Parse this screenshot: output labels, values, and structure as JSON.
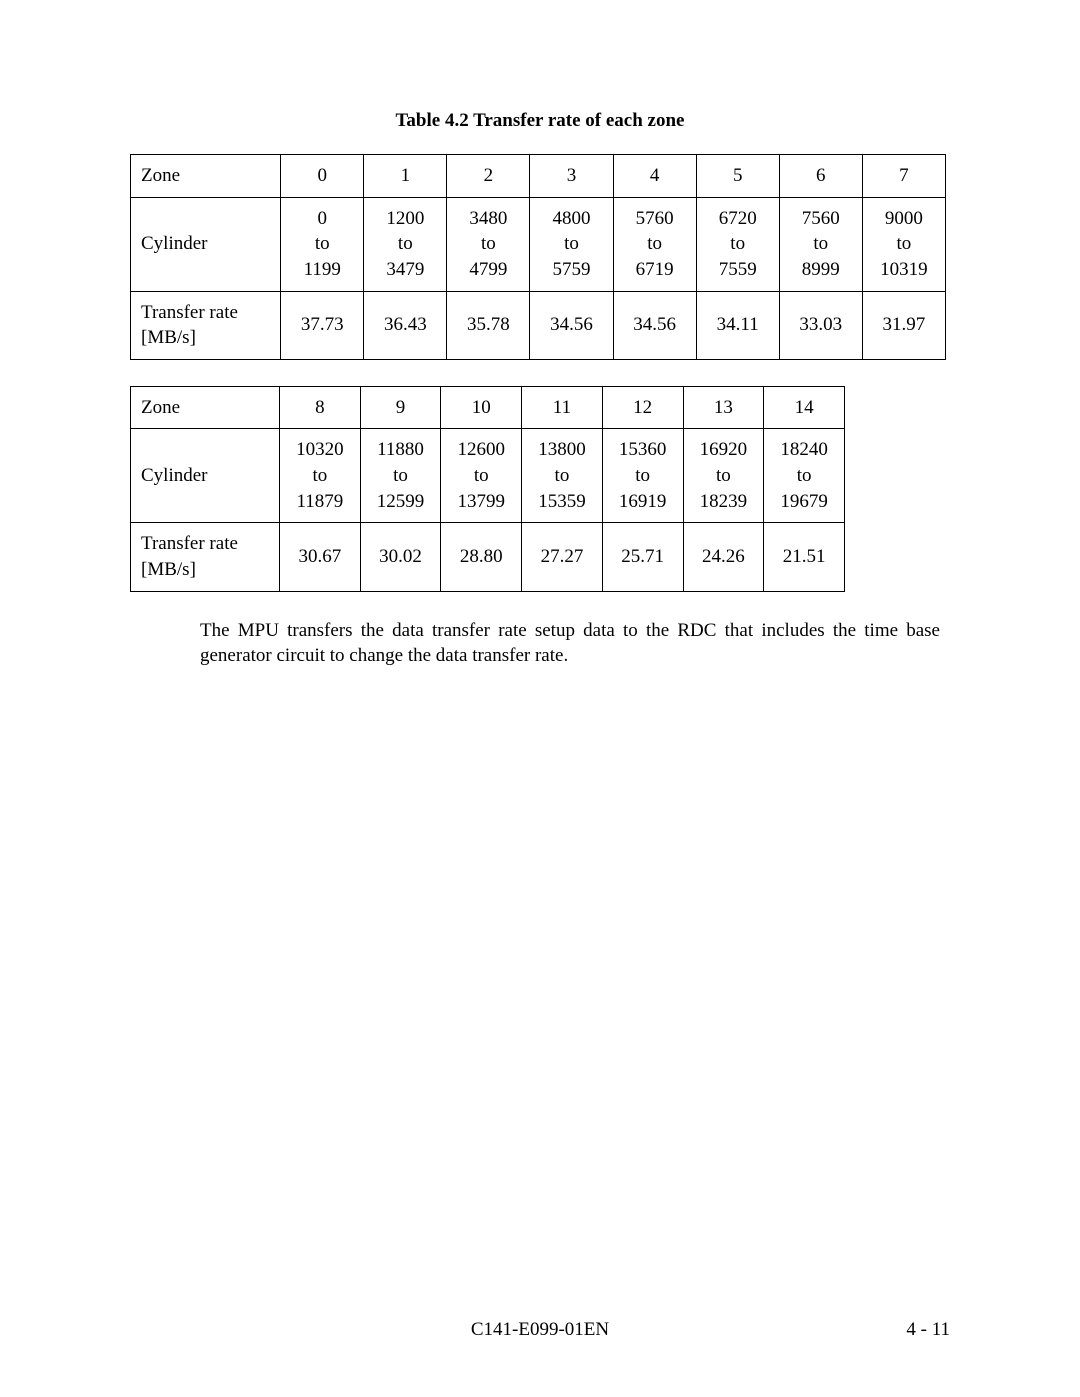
{
  "caption": "Table 4.2    Transfer rate of each zone",
  "labels": {
    "zone": "Zone",
    "cylinder": "Cylinder",
    "transfer": "Transfer rate [MB/s]"
  },
  "table1": {
    "zones": [
      "0",
      "1",
      "2",
      "3",
      "4",
      "5",
      "6",
      "7"
    ],
    "cyl_from": [
      "0",
      "1200",
      "3480",
      "4800",
      "5760",
      "6720",
      "7560",
      "9000"
    ],
    "cyl_to": [
      "1199",
      "3479",
      "4799",
      "5759",
      "6719",
      "7559",
      "8999",
      "10319"
    ],
    "rates": [
      "37.73",
      "36.43",
      "35.78",
      "34.56",
      "34.56",
      "34.11",
      "33.03",
      "31.97"
    ]
  },
  "table2": {
    "zones": [
      "8",
      "9",
      "10",
      "11",
      "12",
      "13",
      "14"
    ],
    "cyl_from": [
      "10320",
      "11880",
      "12600",
      "13800",
      "15360",
      "16920",
      "18240"
    ],
    "cyl_to": [
      "11879",
      "12599",
      "13799",
      "15359",
      "16919",
      "18239",
      "19679"
    ],
    "rates": [
      "30.67",
      "30.02",
      "28.80",
      "27.27",
      "25.71",
      "24.26",
      "21.51"
    ]
  },
  "paragraph": "The MPU transfers the data transfer rate setup data to the RDC that includes the time base generator circuit to change the data transfer rate.",
  "footer": {
    "center": "C141-E099-01EN",
    "right": "4 - 11"
  },
  "to_word": "to"
}
